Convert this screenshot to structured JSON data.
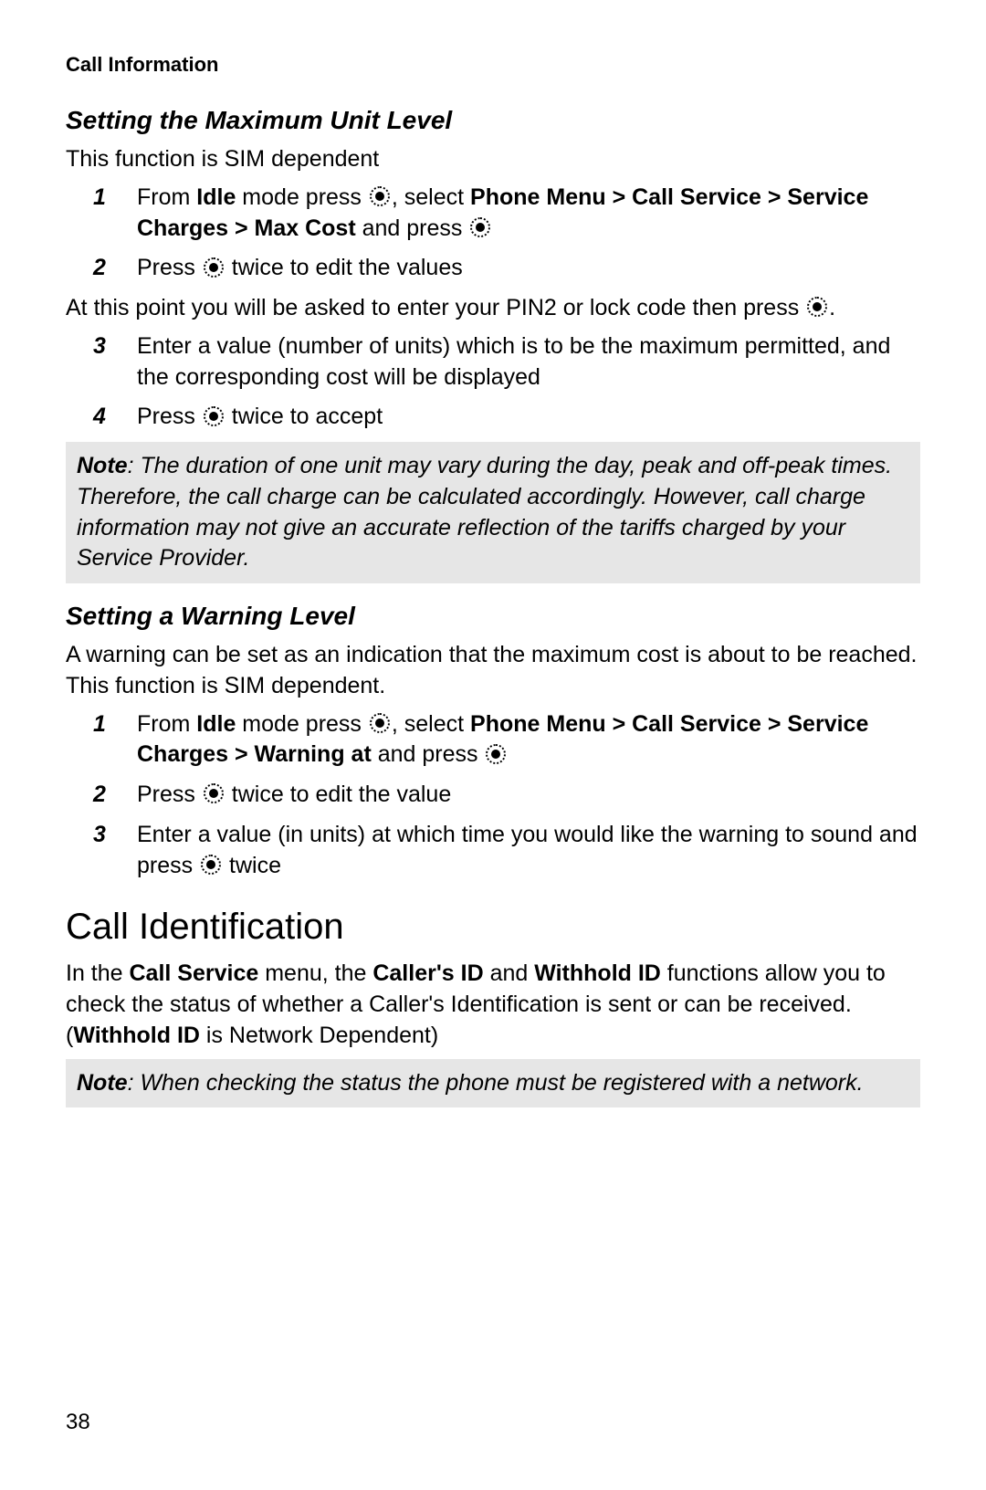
{
  "header": "Call Information",
  "section1": {
    "title": "Setting the Maximum Unit Level",
    "intro": "This function is SIM dependent",
    "step1_num": "1",
    "step1_a": "From ",
    "step1_b": "Idle",
    "step1_c": " mode press ",
    "step1_d": ", select ",
    "step1_e": "Phone Menu > Call Service > Service Charges > Max Cost",
    "step1_f": " and press ",
    "step2_num": "2",
    "step2_a": "Press ",
    "step2_b": " twice to edit the values",
    "mid_a": "At this point you will be asked to enter your PIN2 or lock code then press ",
    "mid_b": ".",
    "step3_num": "3",
    "step3": "Enter a value (number of units) which is to be the maximum permitted, and the corresponding cost will be displayed",
    "step4_num": "4",
    "step4_a": "Press ",
    "step4_b": " twice to accept",
    "note_label": "Note",
    "note_text": ": The duration of one unit may vary during the day, peak and off-peak times. Therefore, the call charge can be calculated accordingly. However, call charge information may not give an accurate reflection of the tariffs charged by your Service Provider."
  },
  "section2": {
    "title": "Setting a Warning Level",
    "intro": "A warning can be set as an indication that the maximum cost is about to be reached. This function is SIM dependent.",
    "step1_num": "1",
    "step1_a": "From ",
    "step1_b": "Idle",
    "step1_c": " mode press ",
    "step1_d": ", select ",
    "step1_e": "Phone Menu > Call Service > Service Charges > Warning at",
    "step1_f": " and press ",
    "step2_num": "2",
    "step2_a": "Press ",
    "step2_b": " twice to edit the value",
    "step3_num": "3",
    "step3_a": "Enter a value (in units) at which time you would like the warning to sound and press ",
    "step3_b": " twice"
  },
  "section3": {
    "title": "Call Identification",
    "body_a": "In the ",
    "body_b": "Call Service",
    "body_c": " menu, the ",
    "body_d": "Caller's ID",
    "body_e": " and ",
    "body_f": "Withhold ID",
    "body_g": " functions allow you to check the status of whether a Caller's Identification is sent or can be received. (",
    "body_h": "Withhold ID",
    "body_i": " is Network Dependent)",
    "note_label": "Note",
    "note_text": ": When checking the status the phone must be registered with a network."
  },
  "page_number": "38"
}
